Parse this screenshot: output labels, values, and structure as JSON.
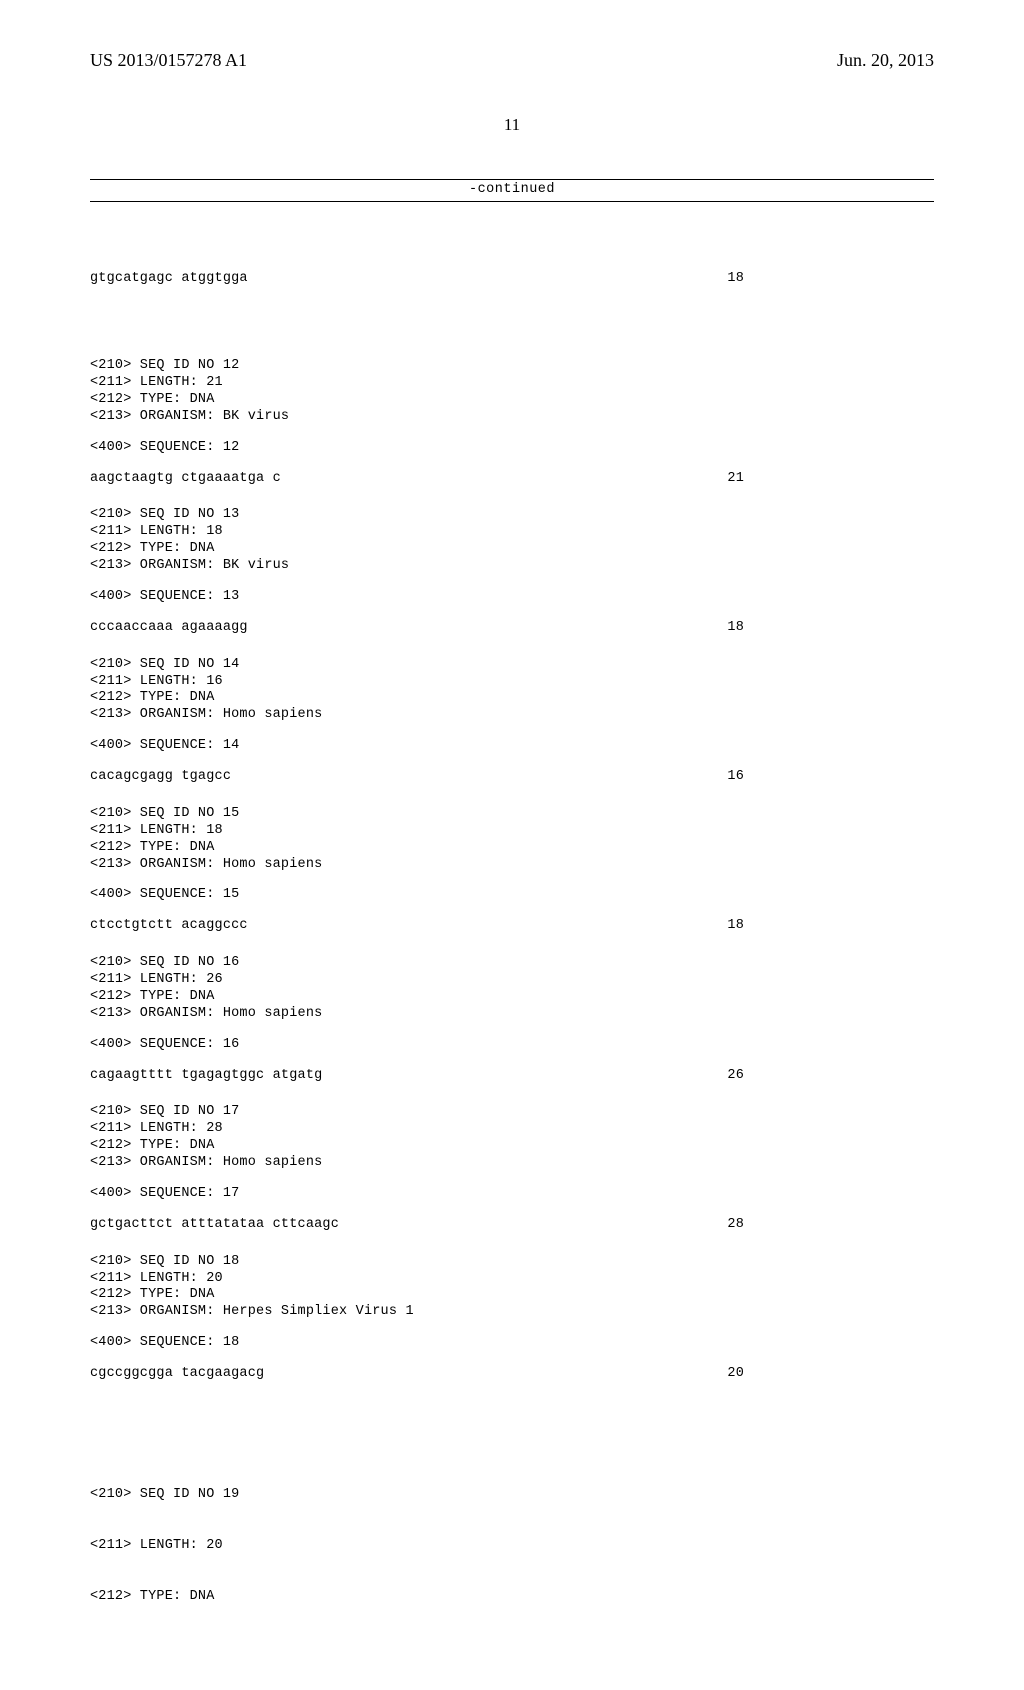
{
  "header": {
    "pub_number": "US 2013/0157278 A1",
    "pub_date": "Jun. 20, 2013",
    "page_number": "11"
  },
  "continued_label": "-continued",
  "initial_sequence": {
    "sequence": "gtgcatgagc atggtgga",
    "length": "18"
  },
  "entries": [
    {
      "seq_id": "<210> SEQ ID NO 12",
      "length": "<211> LENGTH: 21",
      "type": "<212> TYPE: DNA",
      "organism": "<213> ORGANISM: BK virus",
      "seq_label": "<400> SEQUENCE: 12",
      "sequence": "aagctaagtg ctgaaaatga c",
      "seq_len": "21"
    },
    {
      "seq_id": "<210> SEQ ID NO 13",
      "length": "<211> LENGTH: 18",
      "type": "<212> TYPE: DNA",
      "organism": "<213> ORGANISM: BK virus",
      "seq_label": "<400> SEQUENCE: 13",
      "sequence": "cccaaccaaa agaaaagg",
      "seq_len": "18"
    },
    {
      "seq_id": "<210> SEQ ID NO 14",
      "length": "<211> LENGTH: 16",
      "type": "<212> TYPE: DNA",
      "organism": "<213> ORGANISM: Homo sapiens",
      "seq_label": "<400> SEQUENCE: 14",
      "sequence": "cacagcgagg tgagcc",
      "seq_len": "16"
    },
    {
      "seq_id": "<210> SEQ ID NO 15",
      "length": "<211> LENGTH: 18",
      "type": "<212> TYPE: DNA",
      "organism": "<213> ORGANISM: Homo sapiens",
      "seq_label": "<400> SEQUENCE: 15",
      "sequence": "ctcctgtctt acaggccc",
      "seq_len": "18"
    },
    {
      "seq_id": "<210> SEQ ID NO 16",
      "length": "<211> LENGTH: 26",
      "type": "<212> TYPE: DNA",
      "organism": "<213> ORGANISM: Homo sapiens",
      "seq_label": "<400> SEQUENCE: 16",
      "sequence": "cagaagtttt tgagagtggc atgatg",
      "seq_len": "26"
    },
    {
      "seq_id": "<210> SEQ ID NO 17",
      "length": "<211> LENGTH: 28",
      "type": "<212> TYPE: DNA",
      "organism": "<213> ORGANISM: Homo sapiens",
      "seq_label": "<400> SEQUENCE: 17",
      "sequence": "gctgacttct atttatataa cttcaagc",
      "seq_len": "28"
    },
    {
      "seq_id": "<210> SEQ ID NO 18",
      "length": "<211> LENGTH: 20",
      "type": "<212> TYPE: DNA",
      "organism": "<213> ORGANISM: Herpes Simpliex Virus 1",
      "seq_label": "<400> SEQUENCE: 18",
      "sequence": "cgccggcgga tacgaagacg",
      "seq_len": "20"
    }
  ],
  "trailing_entry": {
    "seq_id": "<210> SEQ ID NO 19",
    "length": "<211> LENGTH: 20",
    "type": "<212> TYPE: DNA"
  }
}
